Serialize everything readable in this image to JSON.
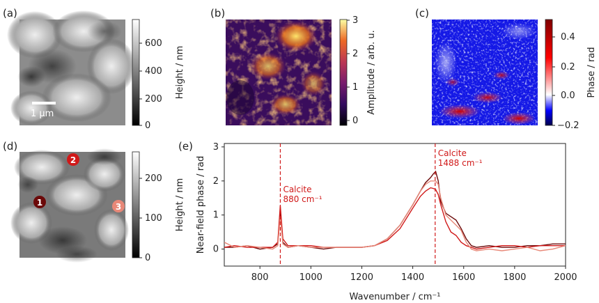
{
  "panel_labels": [
    "(a)",
    "(b)",
    "(c)",
    "(d)",
    "(e)"
  ],
  "panel_a": {
    "scalebar_label": "1 µm",
    "colorbar_label": "Height / nm",
    "colorbar_ticks": [
      "0",
      "200",
      "400",
      "600"
    ]
  },
  "panel_b": {
    "colorbar_label": "Amplitude / arb. u.",
    "colorbar_ticks": [
      "0",
      "1",
      "2",
      "3"
    ]
  },
  "panel_c": {
    "colorbar_label": "Phase / rad",
    "colorbar_ticks": [
      "−0.2",
      "0.0",
      "0.2",
      "0.4"
    ]
  },
  "panel_d": {
    "colorbar_label": "Height / nm",
    "colorbar_ticks": [
      "0",
      "100",
      "200"
    ],
    "markers": [
      "1",
      "2",
      "3"
    ]
  },
  "marker_colors": [
    "#6b0a0a",
    "#d01818",
    "#e88878"
  ],
  "chart_data": {
    "type": "line",
    "xlabel": "Wavenumber / cm⁻¹",
    "ylabel": "Near-field phase / rad",
    "xlim": [
      660,
      2000
    ],
    "ylim": [
      -0.5,
      3.1
    ],
    "xticks": [
      "800",
      "1000",
      "1200",
      "1400",
      "1600",
      "1800",
      "2000"
    ],
    "yticks": [
      "0",
      "1",
      "2",
      "3"
    ],
    "annotations": [
      {
        "x": 880,
        "line1": "Calcite",
        "line2": "880 cm⁻¹"
      },
      {
        "x": 1488,
        "line1": "Calcite",
        "line2": "1488 cm⁻¹"
      }
    ],
    "series": [
      {
        "color": "#6b0a0a",
        "x": [
          660,
          700,
          750,
          800,
          850,
          870,
          880,
          890,
          910,
          950,
          1000,
          1050,
          1100,
          1150,
          1200,
          1250,
          1300,
          1350,
          1400,
          1430,
          1450,
          1470,
          1480,
          1490,
          1500,
          1510,
          1530,
          1550,
          1570,
          1590,
          1610,
          1630,
          1650,
          1700,
          1750,
          1800,
          1850,
          1900,
          1950,
          2000
        ],
        "y": [
          0.05,
          0.05,
          0.1,
          0.0,
          0.05,
          0.15,
          1.1,
          0.2,
          0.05,
          0.1,
          0.05,
          0.0,
          0.05,
          0.05,
          0.05,
          0.1,
          0.3,
          0.7,
          1.3,
          1.7,
          1.95,
          2.1,
          2.2,
          2.28,
          2.0,
          1.4,
          1.05,
          0.95,
          0.85,
          0.6,
          0.3,
          0.1,
          0.05,
          0.1,
          0.05,
          0.05,
          0.1,
          0.1,
          0.15,
          0.15
        ]
      },
      {
        "color": "#d01818",
        "x": [
          660,
          700,
          750,
          800,
          850,
          870,
          880,
          890,
          910,
          950,
          1000,
          1050,
          1100,
          1150,
          1200,
          1250,
          1300,
          1350,
          1400,
          1430,
          1450,
          1470,
          1480,
          1490,
          1500,
          1510,
          1530,
          1550,
          1570,
          1590,
          1610,
          1630,
          1650,
          1700,
          1750,
          1800,
          1850,
          1900,
          1950,
          2000
        ],
        "y": [
          0.05,
          0.1,
          0.05,
          0.05,
          0.05,
          0.2,
          1.28,
          0.3,
          0.1,
          0.1,
          0.1,
          0.05,
          0.05,
          0.05,
          0.05,
          0.1,
          0.25,
          0.6,
          1.2,
          1.55,
          1.7,
          1.8,
          1.78,
          1.75,
          1.6,
          1.3,
          0.8,
          0.5,
          0.4,
          0.2,
          0.1,
          0.05,
          0.0,
          0.05,
          0.1,
          0.1,
          0.05,
          0.1,
          0.1,
          0.1
        ]
      },
      {
        "color": "#e88878",
        "x": [
          660,
          700,
          750,
          800,
          850,
          870,
          880,
          890,
          910,
          950,
          1000,
          1050,
          1100,
          1150,
          1200,
          1250,
          1300,
          1350,
          1400,
          1430,
          1450,
          1470,
          1480,
          1490,
          1500,
          1510,
          1530,
          1550,
          1570,
          1590,
          1610,
          1630,
          1650,
          1700,
          1750,
          1800,
          1850,
          1900,
          1950,
          2000
        ],
        "y": [
          0.2,
          0.05,
          0.1,
          0.05,
          0.0,
          0.1,
          0.95,
          0.15,
          0.05,
          0.1,
          0.05,
          0.05,
          0.05,
          0.05,
          0.05,
          0.1,
          0.3,
          0.7,
          1.3,
          1.7,
          1.9,
          2.0,
          2.0,
          2.0,
          1.9,
          1.5,
          1.0,
          0.85,
          0.7,
          0.55,
          0.2,
          0.0,
          -0.05,
          0.0,
          -0.05,
          0.0,
          0.05,
          -0.05,
          0.0,
          0.1
        ]
      }
    ]
  }
}
